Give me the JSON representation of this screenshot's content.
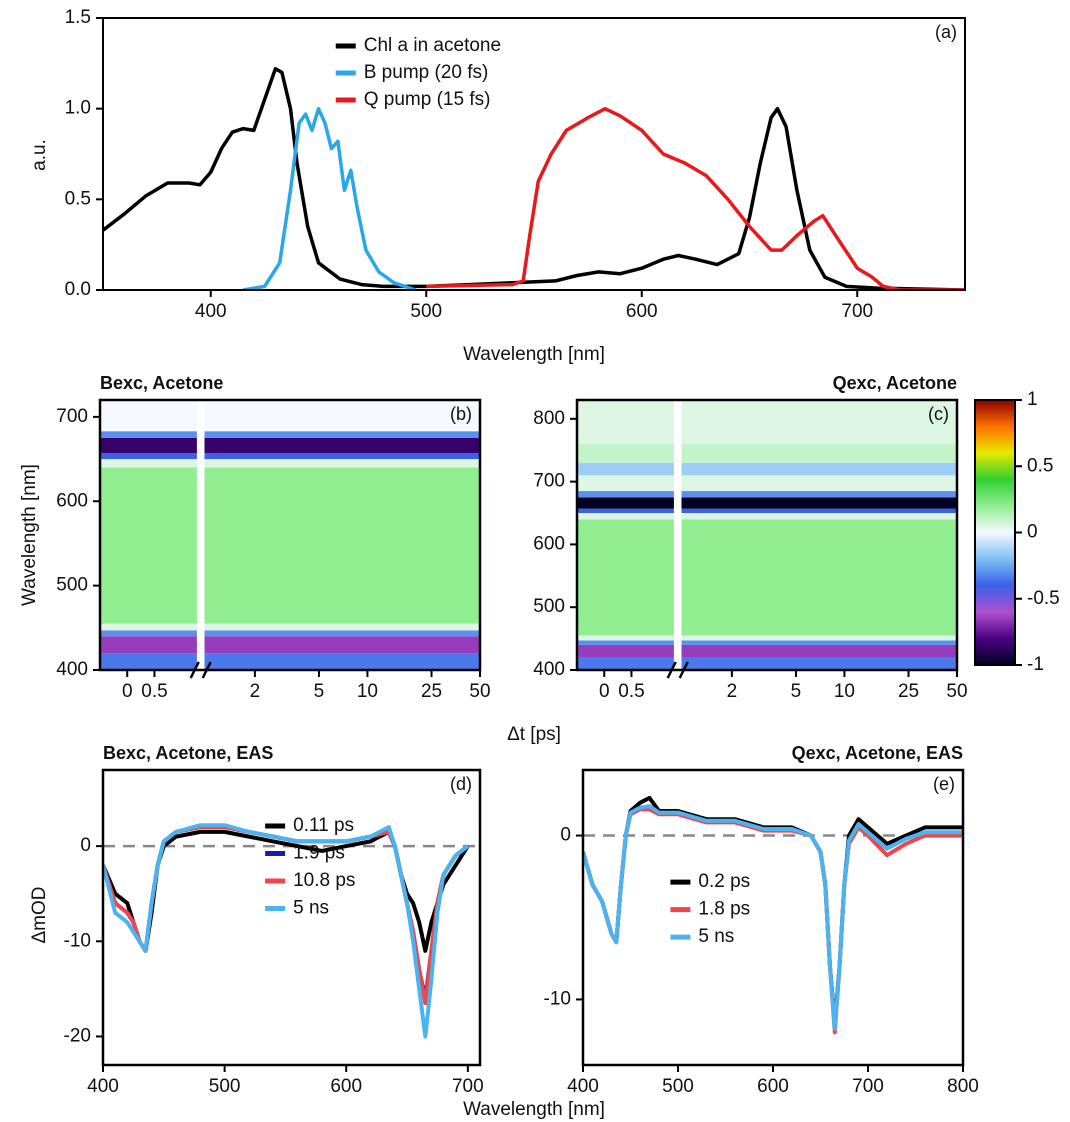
{
  "chart_data": [
    {
      "type": "line",
      "panel_label": "(a)",
      "xlabel": "Wavelength [nm]",
      "ylabel": "a.u.",
      "xlim": [
        350,
        750
      ],
      "xticks": [
        400,
        500,
        600,
        700
      ],
      "ylim": [
        0,
        1.5
      ],
      "yticks": [
        {
          "value": 0,
          "label": "0.0"
        },
        0.5,
        {
          "value": 1,
          "label": "1.0"
        },
        1.5
      ],
      "legend": "upper-center",
      "series": [
        {
          "name": "Chl a in acetone",
          "color": "#000000",
          "x": [
            350,
            360,
            370,
            380,
            390,
            395,
            400,
            405,
            410,
            415,
            420,
            425,
            430,
            433,
            437,
            440,
            445,
            450,
            460,
            470,
            480,
            500,
            520,
            540,
            560,
            570,
            580,
            590,
            600,
            610,
            617,
            625,
            635,
            645,
            650,
            655,
            660,
            663,
            667,
            672,
            678,
            685,
            695,
            710,
            750
          ],
          "values": [
            0.33,
            0.42,
            0.52,
            0.59,
            0.59,
            0.58,
            0.65,
            0.78,
            0.87,
            0.89,
            0.88,
            1.05,
            1.22,
            1.2,
            1.0,
            0.7,
            0.35,
            0.15,
            0.06,
            0.03,
            0.02,
            0.02,
            0.03,
            0.04,
            0.05,
            0.08,
            0.1,
            0.09,
            0.12,
            0.17,
            0.19,
            0.17,
            0.14,
            0.2,
            0.4,
            0.7,
            0.95,
            1.0,
            0.9,
            0.55,
            0.22,
            0.07,
            0.02,
            0.01,
            0
          ]
        },
        {
          "name": "B pump (20 fs)",
          "color": "#29a8e8",
          "x": [
            415,
            425,
            432,
            437,
            441,
            444,
            447,
            450,
            453,
            456,
            459,
            462,
            465,
            468,
            472,
            478,
            485,
            495
          ],
          "values": [
            0,
            0.02,
            0.15,
            0.55,
            0.92,
            0.97,
            0.88,
            1.0,
            0.92,
            0.78,
            0.82,
            0.55,
            0.66,
            0.45,
            0.22,
            0.1,
            0.04,
            0
          ]
        },
        {
          "name": "Q pump (15 fs)",
          "color": "#e8181c",
          "x": [
            500,
            540,
            545,
            548,
            552,
            558,
            565,
            575,
            583,
            590,
            600,
            610,
            620,
            630,
            640,
            650,
            660,
            665,
            672,
            680,
            684,
            690,
            700,
            707,
            712,
            720,
            750
          ],
          "values": [
            0.02,
            0.03,
            0.05,
            0.3,
            0.6,
            0.75,
            0.88,
            0.95,
            1.0,
            0.96,
            0.88,
            0.75,
            0.7,
            0.63,
            0.5,
            0.35,
            0.22,
            0.22,
            0.3,
            0.38,
            0.41,
            0.3,
            0.12,
            0.07,
            0.02,
            0,
            0
          ]
        }
      ]
    },
    {
      "type": "heatmap",
      "title": "Bexc, Acetone",
      "panel_label": "(b)",
      "ylabel": "Wavelength [nm]",
      "xlabel": "Δt [ps]",
      "xlim": [
        -0.5,
        50
      ],
      "x_break": 1,
      "xticks": [
        0,
        0.5,
        2,
        5,
        10,
        25,
        50
      ],
      "ylim": [
        400,
        720
      ],
      "yticks": [
        400,
        500,
        600,
        700
      ],
      "y_edges": [
        400,
        420,
        440,
        447,
        455,
        640,
        650,
        657,
        675,
        683,
        720
      ],
      "values": [
        -0.35,
        -0.65,
        -0.3,
        0.05,
        0.2,
        0.05,
        -0.4,
        -0.85,
        -0.3,
        0
      ],
      "clim": [
        -1,
        1
      ],
      "colormap": [
        "#000022",
        "#4b0082",
        "#b050d0",
        "#3a60e8",
        "#7ec0f5",
        "#f5f8ff",
        "#90ee90",
        "#30d030",
        "#e8e800",
        "#ff7000",
        "#8b0000"
      ]
    },
    {
      "type": "heatmap",
      "title": "Qexc, Acetone",
      "panel_label": "(c)",
      "xlim": [
        -0.5,
        50
      ],
      "x_break": 1,
      "xticks": [
        0,
        0.5,
        2,
        5,
        10,
        25,
        50
      ],
      "ylim": [
        400,
        830
      ],
      "yticks": [
        400,
        500,
        600,
        700,
        800
      ],
      "y_edges": [
        400,
        420,
        440,
        447,
        455,
        640,
        650,
        657,
        675,
        685,
        710,
        730,
        760,
        830
      ],
      "values": [
        -0.35,
        -0.65,
        -0.3,
        0.05,
        0.2,
        0.05,
        -0.4,
        -1,
        -0.3,
        0.05,
        -0.15,
        0.1,
        0.05
      ],
      "clim": [
        -1,
        1
      ],
      "colorbar_ticks": [
        1,
        0.5,
        0,
        -0.5,
        -1
      ],
      "colormap": [
        "#000022",
        "#4b0082",
        "#b050d0",
        "#3a60e8",
        "#7ec0f5",
        "#f5f8ff",
        "#90ee90",
        "#30d030",
        "#e8e800",
        "#ff7000",
        "#8b0000"
      ]
    },
    {
      "type": "line",
      "title": "Bexc, Acetone, EAS",
      "panel_label": "(d)",
      "ylabel": "ΔmOD",
      "xlabel": "Wavelength [nm]",
      "xlim": [
        400,
        710
      ],
      "xticks": [
        400,
        500,
        600,
        700
      ],
      "ylim": [
        -23,
        8
      ],
      "yticks": [
        -20,
        -10,
        0
      ],
      "zero_line": true,
      "legend": "center",
      "series": [
        {
          "name": "0.11 ps",
          "color": "#000000",
          "x": [
            400,
            410,
            420,
            425,
            430,
            435,
            440,
            445,
            450,
            460,
            480,
            500,
            520,
            540,
            560,
            580,
            600,
            620,
            635,
            640,
            645,
            650,
            655,
            660,
            665,
            670,
            675,
            680,
            690,
            700
          ],
          "values": [
            -2,
            -5,
            -6,
            -8,
            -10,
            -11,
            -7,
            -2,
            0,
            1,
            1.5,
            1.5,
            1,
            0.5,
            0,
            -0.5,
            0,
            0.5,
            1.5,
            0,
            -3,
            -5,
            -6,
            -8,
            -11,
            -8,
            -6,
            -4,
            -2,
            0
          ]
        },
        {
          "name": "1.9 ps",
          "color": "#1a1aa8",
          "x": [
            400,
            410,
            420,
            425,
            430,
            435,
            440,
            445,
            450,
            460,
            480,
            500,
            520,
            540,
            560,
            580,
            600,
            620,
            635,
            640,
            645,
            650,
            655,
            660,
            665,
            670,
            675,
            680,
            690,
            700
          ],
          "values": [
            -2,
            -6,
            -7,
            -8,
            -10,
            -11,
            -6,
            -2,
            0.5,
            1.5,
            2,
            2,
            1.5,
            1,
            0.5,
            0.5,
            0.5,
            1,
            1.5,
            0,
            -3,
            -6,
            -9,
            -13,
            -16,
            -11,
            -6,
            -3,
            -1,
            0
          ]
        },
        {
          "name": "10.8 ps",
          "color": "#f0454a",
          "x": [
            400,
            410,
            420,
            425,
            430,
            435,
            440,
            445,
            450,
            460,
            480,
            500,
            520,
            540,
            560,
            580,
            600,
            620,
            635,
            640,
            645,
            650,
            655,
            660,
            665,
            670,
            675,
            680,
            690,
            700
          ],
          "values": [
            -2,
            -6,
            -7,
            -8,
            -10,
            -11,
            -6,
            -2,
            0.5,
            1.5,
            2,
            2,
            1.5,
            1,
            0.5,
            0.5,
            0.5,
            1,
            1.5,
            0,
            -3,
            -6,
            -9,
            -13,
            -16.5,
            -11,
            -6,
            -3,
            -1,
            0
          ]
        },
        {
          "name": "5 ns",
          "color": "#4ab4f0",
          "x": [
            400,
            410,
            420,
            425,
            430,
            435,
            440,
            445,
            450,
            460,
            480,
            500,
            520,
            540,
            560,
            580,
            600,
            620,
            635,
            640,
            645,
            650,
            655,
            660,
            665,
            670,
            675,
            680,
            690,
            700
          ],
          "values": [
            -2,
            -7,
            -8,
            -9,
            -10,
            -11,
            -6,
            -2,
            0.5,
            1.5,
            2.2,
            2.2,
            1.5,
            1,
            0.5,
            0.5,
            0.5,
            1,
            2,
            0,
            -3,
            -6,
            -10,
            -15,
            -20,
            -14,
            -7,
            -3,
            -1,
            0
          ]
        }
      ]
    },
    {
      "type": "line",
      "title": "Qexc, Acetone, EAS",
      "panel_label": "(e)",
      "xlim": [
        400,
        800
      ],
      "xticks": [
        400,
        500,
        600,
        700,
        800
      ],
      "ylim": [
        -14,
        4
      ],
      "yticks": [
        -10,
        0
      ],
      "zero_line": true,
      "legend": "center-left",
      "series": [
        {
          "name": "0.2 ps",
          "color": "#000000",
          "x": [
            400,
            410,
            420,
            425,
            430,
            435,
            440,
            445,
            450,
            460,
            470,
            480,
            500,
            530,
            560,
            590,
            620,
            640,
            650,
            655,
            660,
            665,
            670,
            675,
            680,
            690,
            700,
            720,
            740,
            760,
            780,
            800
          ],
          "values": [
            -1,
            -3,
            -4,
            -5,
            -6,
            -6.5,
            -3,
            0,
            1.5,
            2,
            2.3,
            1.5,
            1.5,
            1,
            1,
            0.5,
            0.5,
            0,
            -1,
            -3,
            -8,
            -11.5,
            -8,
            -3,
            0,
            1,
            0.5,
            -0.5,
            0,
            0.5,
            0.5,
            0.5
          ]
        },
        {
          "name": "1.8 ps",
          "color": "#f0454a",
          "x": [
            400,
            410,
            420,
            425,
            430,
            435,
            440,
            445,
            450,
            460,
            470,
            480,
            500,
            530,
            560,
            590,
            620,
            640,
            650,
            655,
            660,
            665,
            670,
            675,
            680,
            690,
            700,
            720,
            740,
            760,
            780,
            800
          ],
          "values": [
            -1,
            -3,
            -4,
            -5,
            -6,
            -6.5,
            -3,
            0,
            1.3,
            1.6,
            1.6,
            1.3,
            1.3,
            0.8,
            0.8,
            0.3,
            0.3,
            0,
            -1,
            -3,
            -8,
            -12,
            -8,
            -3,
            -0.5,
            0.5,
            0,
            -1.2,
            -0.5,
            0,
            0,
            0
          ]
        },
        {
          "name": "5 ns",
          "color": "#4ab4f0",
          "x": [
            400,
            410,
            420,
            425,
            430,
            435,
            440,
            445,
            450,
            460,
            470,
            480,
            500,
            530,
            560,
            590,
            620,
            640,
            650,
            655,
            660,
            665,
            670,
            675,
            680,
            690,
            700,
            720,
            740,
            760,
            780,
            800
          ],
          "values": [
            -1,
            -3,
            -4,
            -5,
            -6,
            -6.5,
            -3,
            0,
            1.4,
            1.7,
            1.8,
            1.4,
            1.4,
            0.9,
            0.9,
            0.4,
            0.4,
            0,
            -1,
            -3,
            -8,
            -11.8,
            -8,
            -3,
            -0.3,
            0.7,
            0.2,
            -0.8,
            -0.2,
            0.2,
            0.2,
            0.2
          ]
        }
      ]
    }
  ]
}
